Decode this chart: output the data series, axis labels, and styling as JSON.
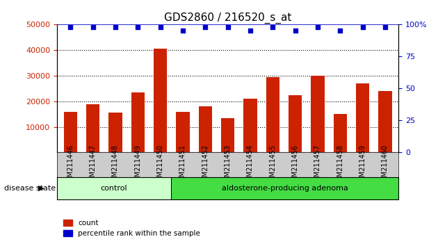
{
  "title": "GDS2860 / 216520_s_at",
  "samples": [
    "GSM211446",
    "GSM211447",
    "GSM211448",
    "GSM211449",
    "GSM211450",
    "GSM211451",
    "GSM211452",
    "GSM211453",
    "GSM211454",
    "GSM211455",
    "GSM211456",
    "GSM211457",
    "GSM211458",
    "GSM211459",
    "GSM211460"
  ],
  "counts": [
    16000,
    19000,
    15500,
    23500,
    40500,
    16000,
    18000,
    13500,
    21000,
    29500,
    22500,
    30000,
    15000,
    27000,
    24000
  ],
  "percentiles": [
    100,
    100,
    100,
    100,
    100,
    97,
    100,
    100,
    97,
    100,
    97,
    100,
    97,
    100,
    100
  ],
  "bar_color": "#cc2200",
  "dot_color": "#0000cc",
  "ylim_left": [
    0,
    50000
  ],
  "ylim_right": [
    0,
    100
  ],
  "yticks_left": [
    10000,
    20000,
    30000,
    40000,
    50000
  ],
  "yticks_right": [
    0,
    25,
    50,
    75,
    100
  ],
  "control_samples": 5,
  "control_label": "control",
  "adenoma_label": "aldosterone-producing adenoma",
  "disease_state_label": "disease state",
  "legend_count": "count",
  "legend_percentile": "percentile rank within the sample",
  "control_bg": "#ccffcc",
  "adenoma_bg": "#44dd44",
  "sample_bg": "#cccccc",
  "grid_color": "#000000",
  "top_line_color": "#0000cc"
}
